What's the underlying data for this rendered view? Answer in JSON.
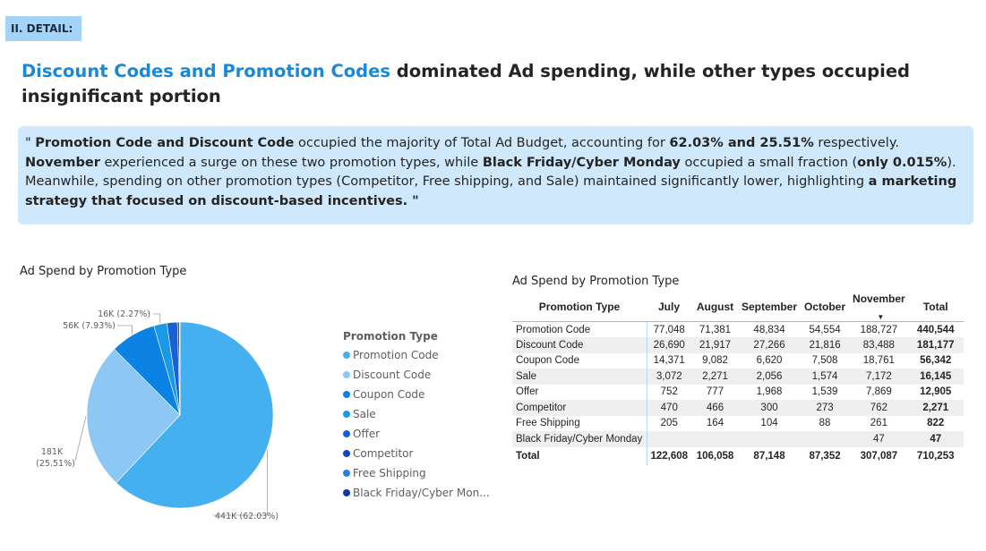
{
  "section_tag": "II. DETAIL:",
  "headline": {
    "highlight": "Discount Codes and Promotion Codes",
    "rest": " dominated Ad spending, while other types occupied insignificant portion"
  },
  "insight": {
    "p1": "\" ",
    "b1": "Promotion Code and Discount Code",
    "p2": " occupied the majority of Total Ad Budget, accounting for ",
    "b2": "62.03% and 25.51%",
    "p3": " respectively. ",
    "b3": "November",
    "p4": " experienced a surge on these two promotion types, while ",
    "b4": "Black Friday/Cyber Monday",
    "p5": " occupied a small fraction (",
    "b5": "only 0.015%",
    "p6": "). Meanwhile, spending on other promotion types (Competitor, Free shipping, and Sale) maintained significantly lower, highlighting ",
    "b6": "a marketing strategy that focused on discount-based incentives. \""
  },
  "colors": {
    "Promotion Code": "#45b0f0",
    "Discount Code": "#8cc7f6",
    "Coupon Code": "#0b82e4",
    "Sale": "#1a99e6",
    "Offer": "#1760d6",
    "Competitor": "#1444c2",
    "Free Shipping": "#2a7fe3",
    "Black Friday/Cyber Monday": "#0d3aa4"
  },
  "chart_data": [
    {
      "type": "pie",
      "title": "Ad Spend by Promotion Type",
      "legend_title": "Promotion Type",
      "legend_position": "right",
      "labels": [
        "Promotion Code",
        "Discount Code",
        "Coupon Code",
        "Sale",
        "Offer",
        "Competitor",
        "Free Shipping",
        "Black Friday/Cyber Monday"
      ],
      "legend_labels": [
        "Promotion Code",
        "Discount Code",
        "Coupon Code",
        "Sale",
        "Offer",
        "Competitor",
        "Free Shipping",
        "Black Friday/Cyber Mon..."
      ],
      "values": [
        440544,
        181177,
        56342,
        16145,
        12905,
        2271,
        822,
        47
      ],
      "data_labels": [
        {
          "index": 0,
          "text": "441K (62.03%)"
        },
        {
          "index": 1,
          "text_line1": "181K",
          "text_line2": "(25.51%)"
        },
        {
          "index": 2,
          "text": "56K (7.93%)"
        },
        {
          "index": 3,
          "text": "16K (2.27%)"
        }
      ]
    },
    {
      "type": "table",
      "title": "Ad Spend by Promotion Type",
      "columns": [
        "Promotion Type",
        "July",
        "August",
        "September",
        "October",
        "November",
        "Total"
      ],
      "rows": [
        {
          "type": "Promotion Code",
          "values": [
            "77,048",
            "71,381",
            "48,834",
            "54,554",
            "188,727"
          ],
          "total": "440,544"
        },
        {
          "type": "Discount Code",
          "values": [
            "26,690",
            "21,917",
            "27,266",
            "21,816",
            "83,488"
          ],
          "total": "181,177"
        },
        {
          "type": "Coupon Code",
          "values": [
            "14,371",
            "9,082",
            "6,620",
            "7,508",
            "18,761"
          ],
          "total": "56,342"
        },
        {
          "type": "Sale",
          "values": [
            "3,072",
            "2,271",
            "2,056",
            "1,574",
            "7,172"
          ],
          "total": "16,145"
        },
        {
          "type": "Offer",
          "values": [
            "752",
            "777",
            "1,968",
            "1,539",
            "7,869"
          ],
          "total": "12,905"
        },
        {
          "type": "Competitor",
          "values": [
            "470",
            "466",
            "300",
            "273",
            "762"
          ],
          "total": "2,271"
        },
        {
          "type": "Free Shipping",
          "values": [
            "205",
            "164",
            "104",
            "88",
            "261"
          ],
          "total": "822"
        },
        {
          "type": "Black Friday/Cyber Monday",
          "values": [
            "",
            "",
            "",
            "",
            "47"
          ],
          "total": "47"
        }
      ],
      "total_row": {
        "label": "Total",
        "values": [
          "122,608",
          "106,058",
          "87,148",
          "87,352",
          "307,087"
        ],
        "total": "710,253"
      }
    }
  ]
}
